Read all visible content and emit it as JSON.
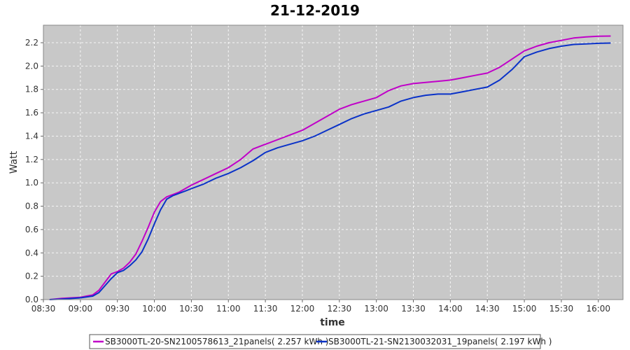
{
  "chart_data": {
    "type": "line",
    "title": "21-12-2019",
    "xlabel": "time",
    "ylabel": "Watt",
    "xlim": [
      "08:30",
      "16:20"
    ],
    "ylim": [
      0.0,
      2.35
    ],
    "grid": true,
    "legend_position": "bottom",
    "x_ticks": [
      "08:30",
      "09:00",
      "09:30",
      "10:00",
      "10:30",
      "11:00",
      "11:30",
      "12:00",
      "12:30",
      "13:00",
      "13:30",
      "14:00",
      "14:30",
      "15:00",
      "15:30",
      "16:00"
    ],
    "y_ticks": [
      0.0,
      0.2,
      0.4,
      0.6,
      0.8,
      1.0,
      1.2,
      1.4,
      1.6,
      1.8,
      2.0,
      2.2
    ],
    "y_tick_labels": [
      "0.0",
      "0.2",
      "0.4",
      "0.6",
      "0.8",
      "1.0",
      "1.2",
      "1.4",
      "1.6",
      "1.8",
      "2.0",
      "2.2"
    ],
    "colors": {
      "plot_background": "#c8c8c8",
      "series_1": "#c000c8",
      "series_2": "#0a32c8"
    },
    "series": [
      {
        "name": "SB3000TL-20-SN2100578613_21panels( 2.257 kWh )",
        "x": [
          "08:35",
          "08:45",
          "09:00",
          "09:10",
          "09:15",
          "09:20",
          "09:25",
          "09:30",
          "09:35",
          "09:40",
          "09:45",
          "09:50",
          "09:55",
          "10:00",
          "10:05",
          "10:10",
          "10:15",
          "10:20",
          "10:25",
          "10:30",
          "10:40",
          "10:50",
          "11:00",
          "11:10",
          "11:20",
          "11:30",
          "11:40",
          "11:50",
          "12:00",
          "12:10",
          "12:20",
          "12:30",
          "12:40",
          "12:50",
          "13:00",
          "13:10",
          "13:20",
          "13:30",
          "13:40",
          "13:50",
          "14:00",
          "14:10",
          "14:20",
          "14:30",
          "14:40",
          "14:50",
          "15:00",
          "15:10",
          "15:20",
          "15:30",
          "15:40",
          "15:50",
          "16:00",
          "16:10"
        ],
        "y": [
          0.0,
          0.01,
          0.02,
          0.04,
          0.08,
          0.15,
          0.22,
          0.24,
          0.27,
          0.32,
          0.39,
          0.5,
          0.62,
          0.75,
          0.84,
          0.88,
          0.9,
          0.92,
          0.95,
          0.98,
          1.03,
          1.08,
          1.13,
          1.2,
          1.29,
          1.33,
          1.37,
          1.41,
          1.45,
          1.51,
          1.57,
          1.63,
          1.67,
          1.7,
          1.73,
          1.79,
          1.83,
          1.85,
          1.86,
          1.87,
          1.88,
          1.9,
          1.92,
          1.94,
          1.99,
          2.06,
          2.13,
          2.17,
          2.2,
          2.22,
          2.24,
          2.25,
          2.256,
          2.257
        ]
      },
      {
        "name": "SB3000TL-21-SN2130032031_19panels( 2.197 kWh )",
        "x": [
          "08:35",
          "08:45",
          "09:00",
          "09:10",
          "09:15",
          "09:20",
          "09:25",
          "09:30",
          "09:35",
          "09:40",
          "09:45",
          "09:50",
          "09:55",
          "10:00",
          "10:05",
          "10:10",
          "10:15",
          "10:20",
          "10:25",
          "10:30",
          "10:40",
          "10:50",
          "11:00",
          "11:10",
          "11:20",
          "11:30",
          "11:40",
          "11:50",
          "12:00",
          "12:10",
          "12:20",
          "12:30",
          "12:40",
          "12:50",
          "13:00",
          "13:10",
          "13:20",
          "13:30",
          "13:40",
          "13:50",
          "14:00",
          "14:10",
          "14:20",
          "14:30",
          "14:40",
          "14:50",
          "15:00",
          "15:10",
          "15:20",
          "15:30",
          "15:40",
          "15:50",
          "16:00",
          "16:10"
        ],
        "y": [
          0.0,
          0.005,
          0.015,
          0.03,
          0.06,
          0.12,
          0.18,
          0.23,
          0.25,
          0.29,
          0.34,
          0.41,
          0.52,
          0.65,
          0.77,
          0.86,
          0.89,
          0.91,
          0.93,
          0.95,
          0.99,
          1.04,
          1.08,
          1.13,
          1.19,
          1.26,
          1.3,
          1.33,
          1.36,
          1.4,
          1.45,
          1.5,
          1.55,
          1.59,
          1.62,
          1.65,
          1.7,
          1.73,
          1.75,
          1.76,
          1.76,
          1.78,
          1.8,
          1.82,
          1.88,
          1.97,
          2.08,
          2.12,
          2.15,
          2.17,
          2.185,
          2.19,
          2.195,
          2.197
        ]
      }
    ]
  }
}
